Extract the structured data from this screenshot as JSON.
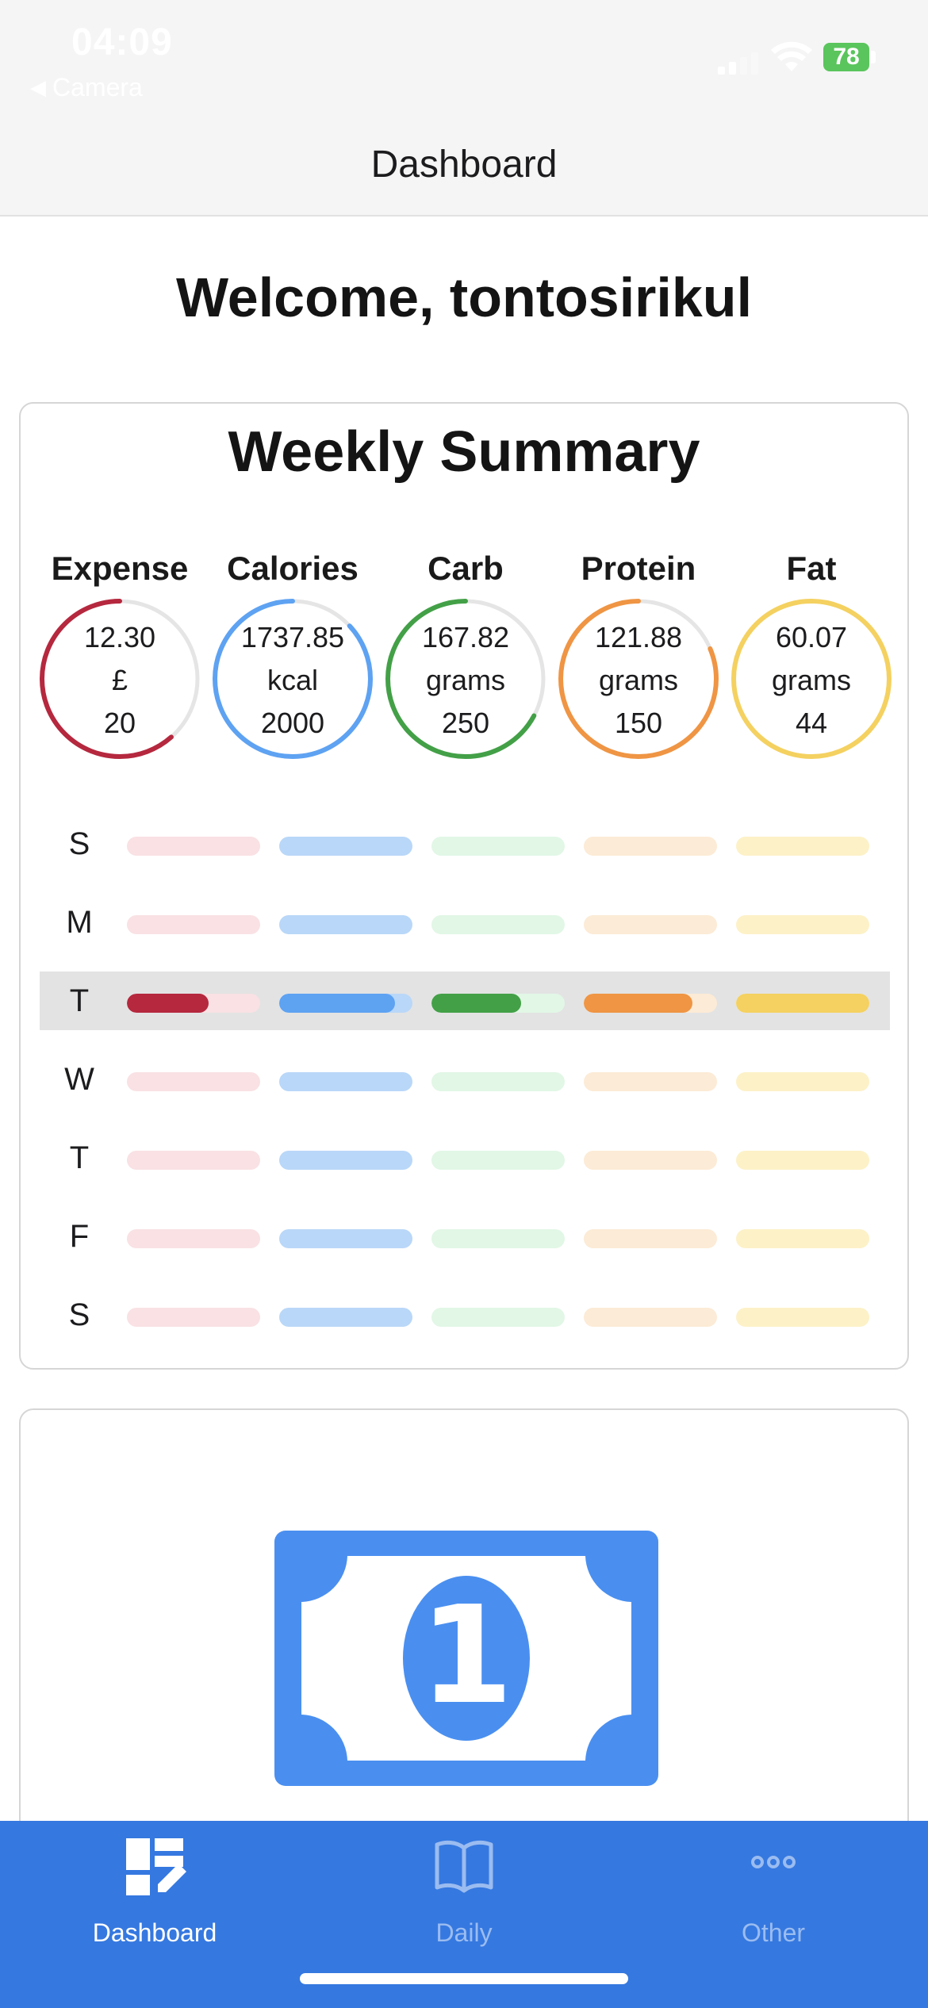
{
  "status_bar": {
    "time": "04:09",
    "back_app": "Camera",
    "battery": "78"
  },
  "header": {
    "title": "Dashboard"
  },
  "welcome": {
    "text": "Welcome, tontosirikul"
  },
  "weekly_summary": {
    "title": "Weekly Summary",
    "metrics": [
      {
        "label": "Expense",
        "value": "12.30",
        "unit": "£",
        "target": "20",
        "progress": 0.615,
        "color": "#b5283e",
        "track": "#e5e5e5"
      },
      {
        "label": "Calories",
        "value": "1737.85",
        "unit": "kcal",
        "target": "2000",
        "progress": 0.869,
        "color": "#5ea2f2",
        "track": "#e5e5e5"
      },
      {
        "label": "Carb",
        "value": "167.82",
        "unit": "grams",
        "target": "250",
        "progress": 0.671,
        "color": "#43a047",
        "track": "#e5e5e5"
      },
      {
        "label": "Protein",
        "value": "121.88",
        "unit": "grams",
        "target": "150",
        "progress": 0.813,
        "color": "#ef9544",
        "track": "#e5e5e5"
      },
      {
        "label": "Fat",
        "value": "60.07",
        "unit": "grams",
        "target": "44",
        "progress": 1.0,
        "color": "#f4d160",
        "track": "#e5e5e5"
      }
    ],
    "bar_colors": {
      "fill": [
        "#b5283e",
        "#5ea2f2",
        "#43a047",
        "#ef9544",
        "#f4d160"
      ],
      "track": [
        "#f9e1e4",
        "#b9d7f8",
        "#e2f7e6",
        "#fcebd6",
        "#fdf1c8"
      ]
    },
    "days": [
      {
        "letter": "S",
        "active": false,
        "progress": [
          0,
          0,
          0,
          0,
          0
        ]
      },
      {
        "letter": "M",
        "active": false,
        "progress": [
          0,
          0,
          0,
          0,
          0
        ]
      },
      {
        "letter": "T",
        "active": true,
        "progress": [
          0.615,
          0.869,
          0.671,
          0.813,
          1.0
        ]
      },
      {
        "letter": "W",
        "active": false,
        "progress": [
          0,
          0,
          0,
          0,
          0
        ]
      },
      {
        "letter": "T",
        "active": false,
        "progress": [
          0,
          0,
          0,
          0,
          0
        ]
      },
      {
        "letter": "F",
        "active": false,
        "progress": [
          0,
          0,
          0,
          0,
          0
        ]
      },
      {
        "letter": "S",
        "active": false,
        "progress": [
          0,
          0,
          0,
          0,
          0
        ]
      }
    ]
  },
  "expense_card": {
    "icon": "banknote-icon",
    "denomination": "1",
    "color": "#4a8ff0"
  },
  "tab_bar": {
    "tabs": [
      {
        "label": "Dashboard",
        "icon": "dashboard-icon",
        "active": true
      },
      {
        "label": "Daily",
        "icon": "book-icon",
        "active": false
      },
      {
        "label": "Other",
        "icon": "more-icon",
        "active": false
      }
    ]
  }
}
